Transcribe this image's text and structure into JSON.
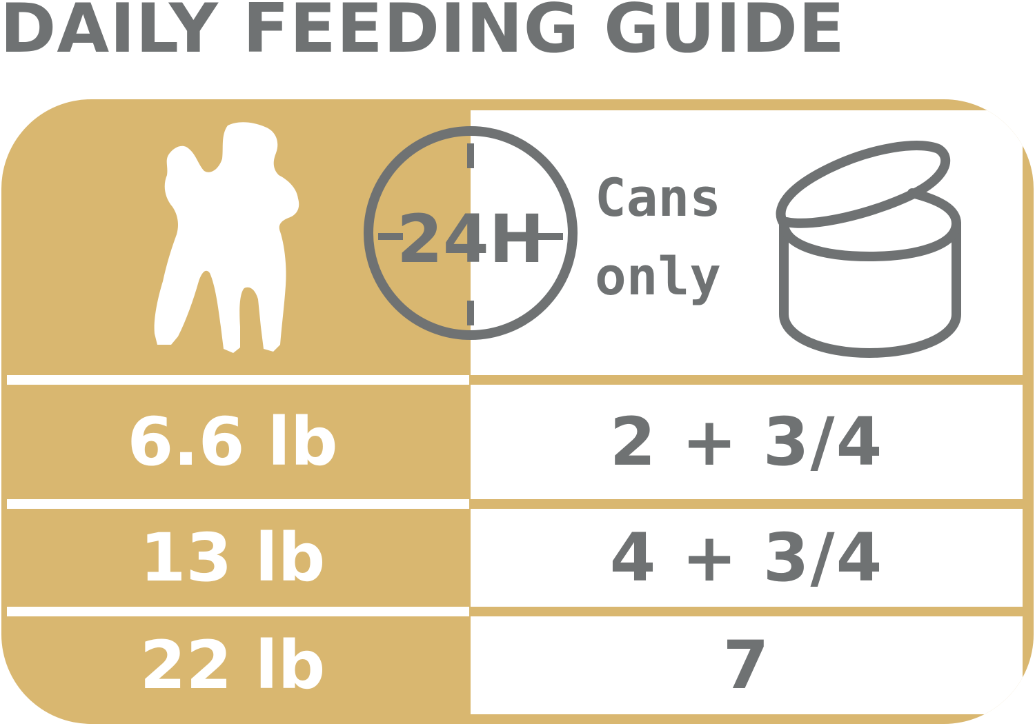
{
  "title": "DAILY FEEDING GUIDE",
  "header": {
    "duration_label": "24H",
    "cans_label_line1": "Cans",
    "cans_label_line2": "only"
  },
  "rows": [
    {
      "weight": "6.6 lb",
      "amount": "2 + 3/4"
    },
    {
      "weight": "13 lb",
      "amount": "4 + 3/4"
    },
    {
      "weight": "22 lb",
      "amount": "7"
    }
  ],
  "colors": {
    "gold": "#d9b770",
    "gray": "#6f7273",
    "white": "#ffffff"
  },
  "icons": [
    "poodle-icon",
    "clock-24h-icon",
    "can-icon"
  ]
}
